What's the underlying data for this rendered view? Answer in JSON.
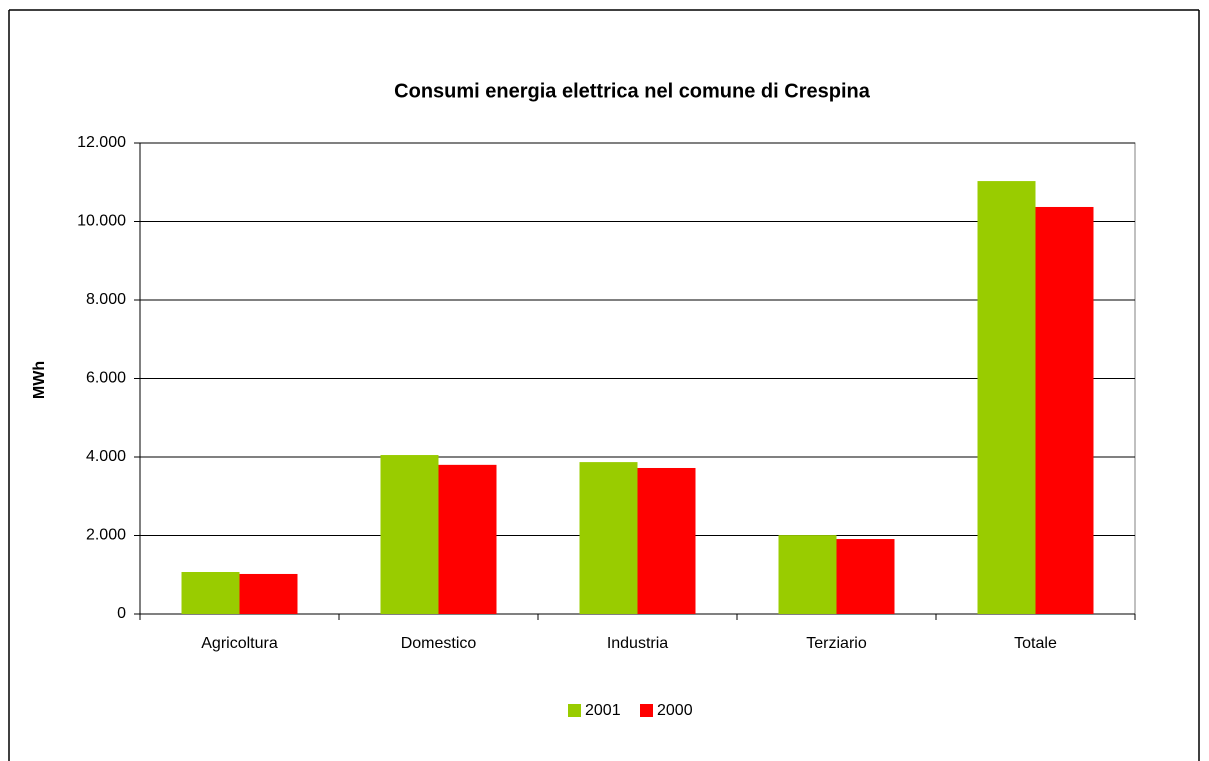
{
  "chart_data": {
    "type": "bar",
    "title": "Consumi energia elettrica nel comune di Crespina",
    "y_label": "MWh",
    "categories": [
      "Agricoltura",
      "Domestico",
      "Industria",
      "Terziario",
      "Totale"
    ],
    "series": [
      {
        "name": "2001",
        "color": "#99cc00",
        "values": [
          1070,
          4050,
          3870,
          2010,
          11030
        ]
      },
      {
        "name": "2000",
        "color": "#ff0000",
        "values": [
          1020,
          3800,
          3720,
          1910,
          10370
        ]
      }
    ],
    "ylim": [
      0,
      12000
    ],
    "yticks": [
      0,
      {
        "value": 2000,
        "label": "2.000"
      },
      {
        "value": 4000,
        "label": "4.000"
      },
      {
        "value": 6000,
        "label": "6.000"
      },
      {
        "value": 8000,
        "label": "8.000"
      },
      {
        "value": 10000,
        "label": "10.000"
      },
      {
        "value": 12000,
        "label": "12.000"
      }
    ],
    "grid": true,
    "legend": "bottom"
  }
}
